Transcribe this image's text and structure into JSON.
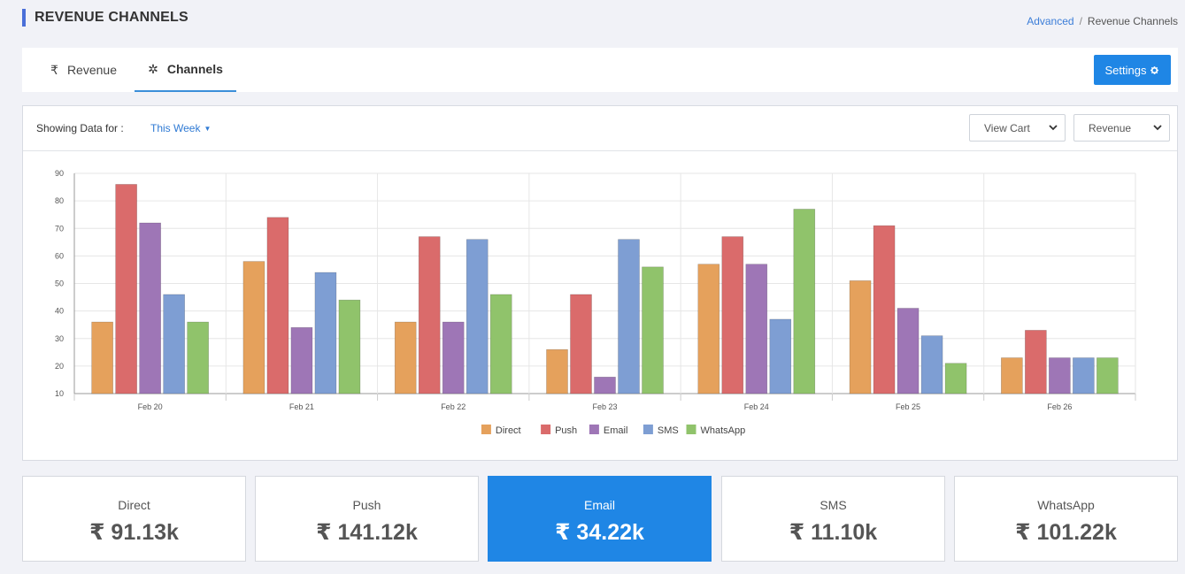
{
  "header": {
    "title": "REVENUE CHANNELS",
    "breadcrumb": {
      "link": "Advanced",
      "separator": "/",
      "current": "Revenue Channels"
    }
  },
  "tabs": [
    {
      "label": "Revenue",
      "icon": "rupee-icon",
      "glyph": "₹",
      "active": false
    },
    {
      "label": "Channels",
      "icon": "spinner-icon",
      "glyph": "✲",
      "active": true
    }
  ],
  "settings": {
    "label": "Settings",
    "icon": "gear-icon"
  },
  "filter": {
    "label": "Showing Data for :",
    "period": "This Week",
    "view_select": "View Cart",
    "metric_select": "Revenue"
  },
  "chart_data": {
    "type": "bar",
    "categories": [
      "Feb 20",
      "Feb 21",
      "Feb 22",
      "Feb 23",
      "Feb 24",
      "Feb 25",
      "Feb 26"
    ],
    "ylim": [
      10,
      90
    ],
    "yticks": [
      10,
      20,
      30,
      40,
      50,
      60,
      70,
      80,
      90
    ],
    "grid": true,
    "legend_position": "bottom",
    "series": [
      {
        "name": "Direct",
        "color": "#e5a15c",
        "values": [
          36,
          58,
          36,
          26,
          57,
          51,
          23
        ]
      },
      {
        "name": "Push",
        "color": "#da6b6b",
        "values": [
          86,
          74,
          67,
          46,
          67,
          71,
          33
        ]
      },
      {
        "name": "Email",
        "color": "#9e76b6",
        "values": [
          72,
          34,
          36,
          16,
          57,
          41,
          23
        ]
      },
      {
        "name": "SMS",
        "color": "#7e9ed3",
        "values": [
          46,
          54,
          66,
          66,
          37,
          31,
          23
        ]
      },
      {
        "name": "WhatsApp",
        "color": "#90c36b",
        "values": [
          36,
          44,
          46,
          56,
          77,
          21,
          23
        ]
      }
    ]
  },
  "stats": [
    {
      "label": "Direct",
      "value": "₹ 91.13k",
      "active": false
    },
    {
      "label": "Push",
      "value": "₹ 141.12k",
      "active": false
    },
    {
      "label": "Email",
      "value": "₹ 34.22k",
      "active": true
    },
    {
      "label": "SMS",
      "value": "₹ 11.10k",
      "active": false
    },
    {
      "label": "WhatsApp",
      "value": "₹ 101.22k",
      "active": false
    }
  ],
  "colors": {
    "accent": "#1f86e5",
    "link": "#2f7ad4",
    "title_bar": "#4a6fd8"
  }
}
